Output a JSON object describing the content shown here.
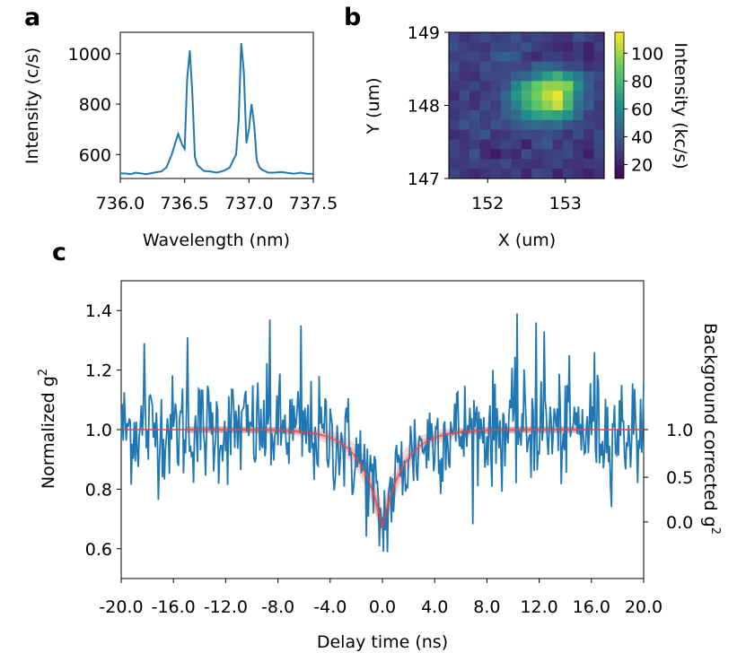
{
  "panels": {
    "a": "a",
    "b": "b",
    "c": "c"
  },
  "chart_data": [
    {
      "panel": "a",
      "type": "line",
      "xlabel": "Wavelength (nm)",
      "ylabel": "Intensity (c/s)",
      "xlim": [
        736.0,
        737.5
      ],
      "ylim": [
        505,
        1085
      ],
      "xticks": [
        "736.0",
        "736.5",
        "737.0",
        "737.5"
      ],
      "yticks": [
        "600",
        "800",
        "1000"
      ],
      "line_color": "#1f77b4",
      "x": [
        736.0,
        736.04,
        736.08,
        736.12,
        736.16,
        736.2,
        736.24,
        736.28,
        736.32,
        736.36,
        736.4,
        736.43,
        736.45,
        736.48,
        736.5,
        736.52,
        736.54,
        736.56,
        736.58,
        736.6,
        736.65,
        736.7,
        736.75,
        736.8,
        736.85,
        736.88,
        736.9,
        736.92,
        736.94,
        736.96,
        736.98,
        737.0,
        737.02,
        737.04,
        737.06,
        737.08,
        737.1,
        737.15,
        737.2,
        737.25,
        737.3,
        737.35,
        737.4,
        737.45,
        737.5
      ],
      "y": [
        525,
        525,
        522,
        528,
        525,
        522,
        526,
        530,
        533,
        550,
        600,
        650,
        682,
        640,
        622,
        900,
        1013,
        840,
        590,
        557,
        535,
        533,
        528,
        535,
        548,
        580,
        600,
        740,
        1042,
        930,
        645,
        700,
        800,
        720,
        580,
        550,
        540,
        528,
        528,
        531,
        527,
        524,
        528,
        524,
        524
      ]
    },
    {
      "panel": "b",
      "type": "heatmap",
      "xlabel": "X (um)",
      "ylabel": "Y (um)",
      "xlim": [
        151.5,
        153.5
      ],
      "ylim": [
        147,
        149
      ],
      "xticks": [
        "152",
        "153"
      ],
      "yticks": [
        "147",
        "148",
        "149"
      ],
      "colorbar": {
        "label": "Intensity (kc/s)",
        "ticks": [
          "20",
          "40",
          "60",
          "80",
          "100"
        ],
        "range": [
          10,
          115
        ]
      },
      "grid": [
        [
          34,
          26,
          30,
          34,
          29,
          31,
          37,
          29,
          33,
          30,
          26,
          26,
          36,
          31,
          26
        ],
        [
          35,
          30,
          28,
          27,
          33,
          32,
          33,
          36,
          29,
          27,
          24,
          22,
          28,
          21,
          30
        ],
        [
          30,
          32,
          33,
          29,
          39,
          42,
          38,
          28,
          24,
          30,
          30,
          26,
          29,
          21,
          26
        ],
        [
          36,
          27,
          29,
          36,
          32,
          33,
          33,
          32,
          44,
          46,
          40,
          34,
          33,
          26,
          28
        ],
        [
          31,
          26,
          25,
          33,
          33,
          34,
          42,
          45,
          56,
          67,
          76,
          63,
          52,
          39,
          34
        ],
        [
          28,
          29,
          33,
          27,
          31,
          36,
          58,
          73,
          89,
          97,
          97,
          94,
          62,
          41,
          30
        ],
        [
          24,
          35,
          25,
          30,
          34,
          46,
          65,
          78,
          92,
          104,
          112,
          84,
          54,
          38,
          32
        ],
        [
          29,
          29,
          26,
          35,
          29,
          42,
          56,
          73,
          86,
          96,
          106,
          80,
          50,
          40,
          28
        ],
        [
          27,
          32,
          37,
          29,
          32,
          40,
          48,
          60,
          68,
          72,
          70,
          62,
          45,
          30,
          29
        ],
        [
          30,
          38,
          34,
          29,
          36,
          34,
          39,
          43,
          48,
          44,
          49,
          38,
          33,
          31,
          28
        ],
        [
          24,
          26,
          33,
          38,
          26,
          28,
          32,
          34,
          33,
          36,
          33,
          27,
          34,
          26,
          34
        ],
        [
          32,
          27,
          29,
          23,
          28,
          32,
          29,
          20,
          35,
          39,
          26,
          33,
          25,
          24,
          33
        ],
        [
          31,
          28,
          37,
          23,
          18,
          26,
          23,
          35,
          28,
          29,
          31,
          33,
          27,
          20,
          32
        ],
        [
          28,
          29,
          31,
          30,
          30,
          34,
          27,
          27,
          25,
          29,
          32,
          26,
          26,
          28,
          29
        ],
        [
          32,
          27,
          23,
          27,
          30,
          27,
          31,
          22,
          34,
          31,
          21,
          29,
          25,
          21,
          26
        ]
      ]
    },
    {
      "panel": "c",
      "type": "line",
      "xlabel": "Delay time (ns)",
      "ylabel": "Normalized g",
      "ylabel_sup": "2",
      "ylabel_right": "Background corrected g",
      "ylabel_right_sup": "2",
      "xlim": [
        -20,
        20
      ],
      "ylim": [
        0.5,
        1.5
      ],
      "xticks": [
        "-20.0",
        "-16.0",
        "-12.0",
        "-8.0",
        "-4.0",
        "0.0",
        "4.0",
        "8.0",
        "12.0",
        "16.0",
        "20.0"
      ],
      "yticks": [
        "0.6",
        "0.8",
        "1.0",
        "1.2",
        "1.4"
      ],
      "right_ticks": [
        "0.0",
        "0.5",
        "1.0"
      ],
      "right_tick_values": [
        0.69,
        0.84,
        1.0
      ],
      "data_color": "#1f77b4",
      "fit_color": "#e8453c",
      "fit_model": {
        "baseline": 1.0,
        "dip_depth": 0.33,
        "tau_ns": 1.6
      },
      "noise_sigma": 0.09,
      "notable_points": [
        {
          "x": -18.2,
          "y": 1.29
        },
        {
          "x": -14.9,
          "y": 1.31
        },
        {
          "x": -8.6,
          "y": 1.37
        },
        {
          "x": -6.2,
          "y": 1.35
        },
        {
          "x": 0.1,
          "y": 0.59
        },
        {
          "x": 10.3,
          "y": 1.39
        },
        {
          "x": 11.8,
          "y": 1.36
        },
        {
          "x": 12.4,
          "y": 1.33
        },
        {
          "x": 16.2,
          "y": 1.26
        }
      ]
    }
  ]
}
